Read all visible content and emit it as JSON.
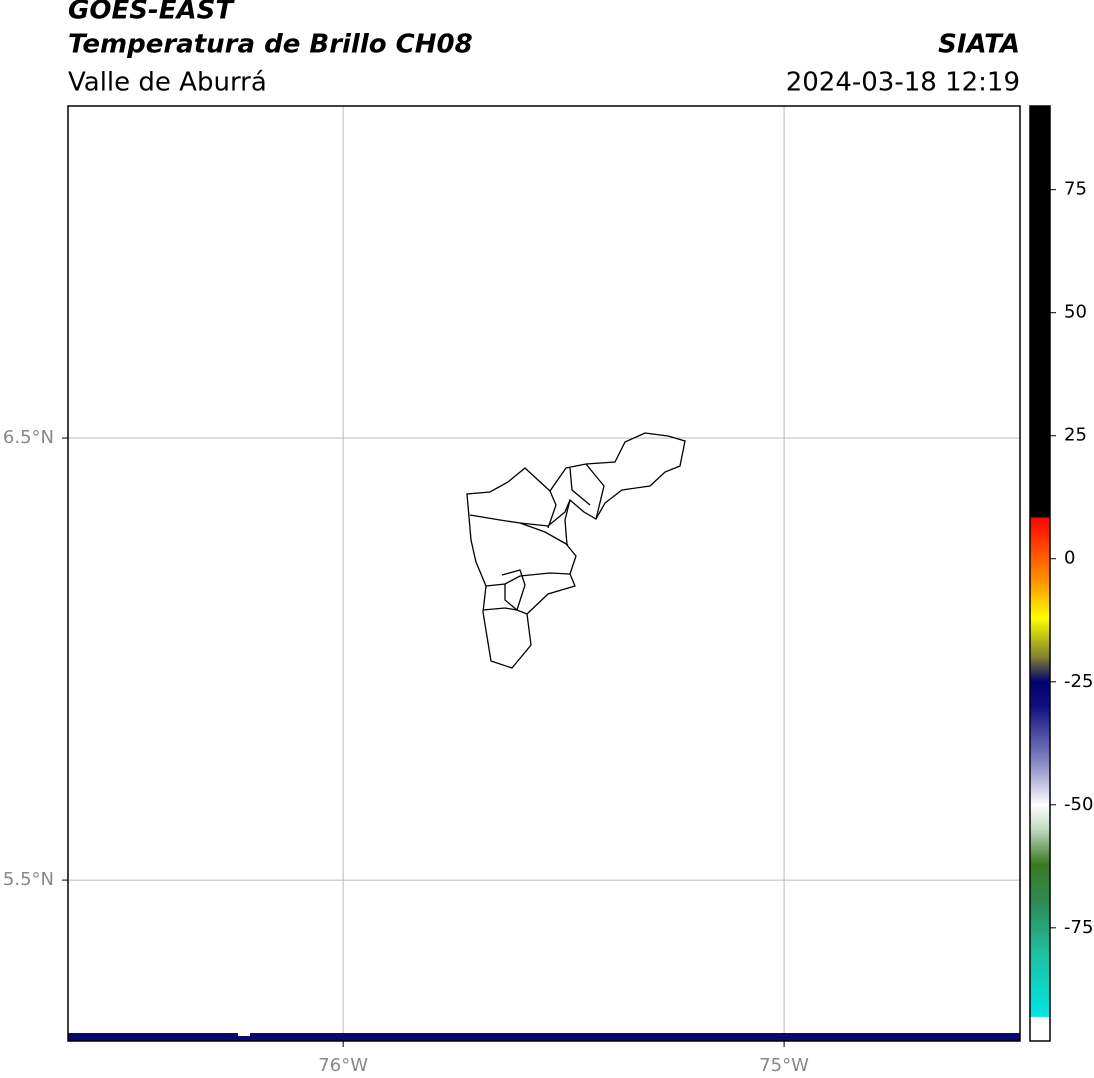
{
  "header": {
    "title": "GOES-EAST",
    "subtitle": "Temperatura de Brillo CH08",
    "source": "SIATA",
    "region": "Valle de Aburrá",
    "datetime": "2024-03-18 12:19"
  },
  "map": {
    "xlim": [
      -76.624,
      -74.465
    ],
    "ylim": [
      5.136,
      7.251
    ],
    "xticks": [
      {
        "value": -76,
        "label": "76°W"
      },
      {
        "value": -75,
        "label": "75°W"
      }
    ],
    "yticks": [
      {
        "value": 6.5,
        "label": "6.5°N"
      },
      {
        "value": 5.5,
        "label": "5.5°N"
      }
    ],
    "grid": true
  },
  "colorbar": {
    "clim": [
      -98,
      92
    ],
    "ticks": [
      75,
      50,
      25,
      0,
      -25,
      -50,
      -75
    ],
    "stops": [
      {
        "value": -98,
        "color": "#ffffff"
      },
      {
        "value": -93,
        "color": "#ffffff"
      },
      {
        "value": -93,
        "color": "#00e5e5"
      },
      {
        "value": -80,
        "color": "#20c0a0"
      },
      {
        "value": -70,
        "color": "#2e8b57"
      },
      {
        "value": -62,
        "color": "#3a7a20"
      },
      {
        "value": -55,
        "color": "#c0d8c0"
      },
      {
        "value": -50,
        "color": "#ffffff"
      },
      {
        "value": -42,
        "color": "#9090c8"
      },
      {
        "value": -30,
        "color": "#101080"
      },
      {
        "value": -25,
        "color": "#000070"
      },
      {
        "value": -20,
        "color": "#808030"
      },
      {
        "value": -12,
        "color": "#ffff00"
      },
      {
        "value": -5,
        "color": "#ff9900"
      },
      {
        "value": 8.5,
        "color": "#ff0000"
      },
      {
        "value": 8.5,
        "color": "#000000"
      },
      {
        "value": 92,
        "color": "#000000"
      }
    ]
  }
}
